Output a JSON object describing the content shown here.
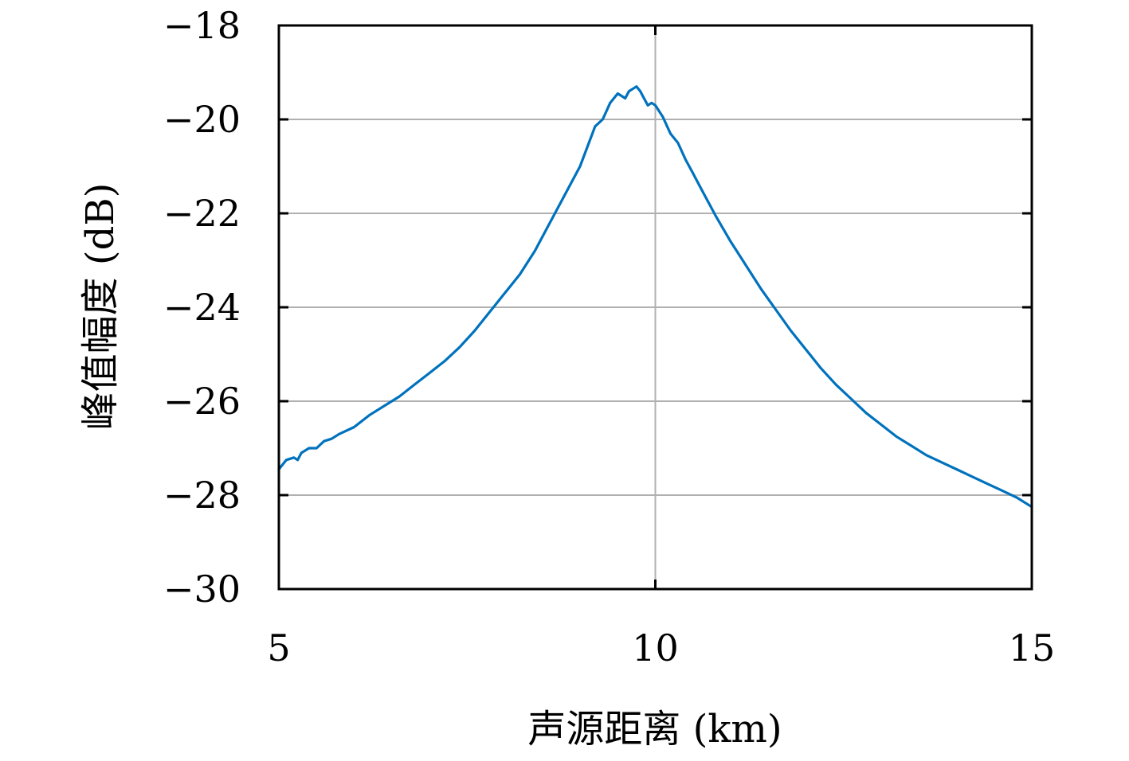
{
  "colors": {
    "background": "#ffffff",
    "axes": "#000000",
    "grid": "#b0b0b0",
    "series": "#0072bd"
  },
  "chart_data": {
    "type": "line",
    "title": "",
    "xlabel": "声源距离 (km)",
    "ylabel": "峰值幅度 (dB)",
    "xlim": [
      5,
      15
    ],
    "ylim": [
      -30,
      -18
    ],
    "xticks": [
      5,
      10,
      15
    ],
    "xtick_labels": [
      "5",
      "10",
      "15"
    ],
    "yticks": [
      -30,
      -28,
      -26,
      -24,
      -22,
      -20,
      -18
    ],
    "ytick_labels": [
      "−30",
      "−28",
      "−26",
      "−24",
      "−22",
      "−20",
      "−18"
    ],
    "grid": true,
    "legend": false,
    "series": [
      {
        "color": "#0072bd",
        "x": [
          5.0,
          5.1,
          5.2,
          5.25,
          5.3,
          5.4,
          5.5,
          5.6,
          5.7,
          5.8,
          6.0,
          6.2,
          6.4,
          6.6,
          6.8,
          7.0,
          7.2,
          7.4,
          7.6,
          7.8,
          8.0,
          8.2,
          8.4,
          8.6,
          8.8,
          9.0,
          9.2,
          9.3,
          9.4,
          9.5,
          9.55,
          9.6,
          9.65,
          9.7,
          9.75,
          9.8,
          9.85,
          9.9,
          9.95,
          10.0,
          10.1,
          10.2,
          10.3,
          10.4,
          10.5,
          10.6,
          10.8,
          11.0,
          11.2,
          11.4,
          11.6,
          11.8,
          12.0,
          12.2,
          12.4,
          12.6,
          12.8,
          13.0,
          13.2,
          13.4,
          13.6,
          13.8,
          14.0,
          14.2,
          14.4,
          14.6,
          14.8,
          15.0
        ],
        "y": [
          -27.45,
          -27.25,
          -27.2,
          -27.25,
          -27.1,
          -27.0,
          -27.0,
          -26.85,
          -26.8,
          -26.7,
          -26.55,
          -26.3,
          -26.1,
          -25.9,
          -25.65,
          -25.4,
          -25.15,
          -24.85,
          -24.5,
          -24.1,
          -23.7,
          -23.3,
          -22.8,
          -22.2,
          -21.6,
          -21.0,
          -20.15,
          -20.0,
          -19.65,
          -19.45,
          -19.5,
          -19.55,
          -19.4,
          -19.35,
          -19.3,
          -19.4,
          -19.55,
          -19.7,
          -19.65,
          -19.7,
          -19.95,
          -20.3,
          -20.5,
          -20.85,
          -21.15,
          -21.45,
          -22.05,
          -22.6,
          -23.1,
          -23.6,
          -24.05,
          -24.5,
          -24.9,
          -25.3,
          -25.65,
          -25.95,
          -26.25,
          -26.5,
          -26.75,
          -26.95,
          -27.15,
          -27.3,
          -27.45,
          -27.6,
          -27.75,
          -27.9,
          -28.05,
          -28.25
        ]
      }
    ]
  }
}
